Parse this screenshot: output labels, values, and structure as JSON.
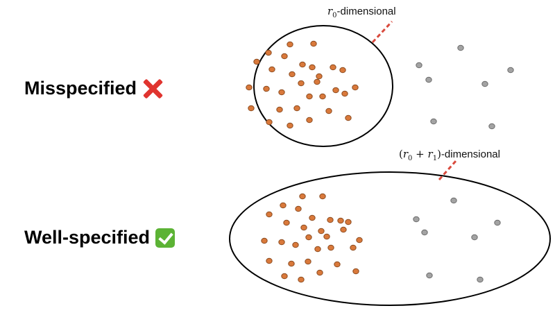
{
  "labels": {
    "misspecified": "Misspecified",
    "well_specified": "Well-specified"
  },
  "annotations": {
    "top_var": "r",
    "top_sub": "0",
    "top_suffix": "-dimensional",
    "bottom_open": "(",
    "bottom_var0": "r",
    "bottom_sub0": "0",
    "bottom_plus": " + ",
    "bottom_var1": "r",
    "bottom_sub1": "1",
    "bottom_close": ")",
    "bottom_suffix": "-dimensional"
  },
  "icons": {
    "misspecified": "cross-mark-icon",
    "well_specified": "check-mark-icon"
  },
  "colors": {
    "orange_point": "#d9793b",
    "orange_stroke": "#8a4a1f",
    "gray_point": "#a3a3a3",
    "gray_stroke": "#6a6a6a",
    "dash": "#d94a3d",
    "ellipse": "#000000"
  }
}
